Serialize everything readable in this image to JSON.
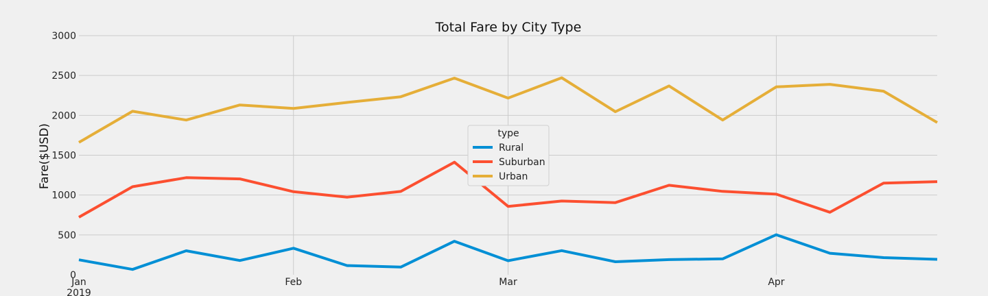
{
  "chart_data": {
    "type": "line",
    "title": "Total Fare by City Type",
    "xlabel": "",
    "ylabel": "Fare($USD)",
    "ylim": [
      0,
      3000
    ],
    "yticks": [
      0,
      500,
      1000,
      1500,
      2000,
      2500,
      3000
    ],
    "x": [
      "2019-01-06",
      "2019-01-13",
      "2019-01-20",
      "2019-01-27",
      "2019-02-03",
      "2019-02-10",
      "2019-02-17",
      "2019-02-24",
      "2019-03-03",
      "2019-03-10",
      "2019-03-17",
      "2019-03-24",
      "2019-03-31",
      "2019-04-07",
      "2019-04-14",
      "2019-04-21",
      "2019-04-28"
    ],
    "xlim": [
      "2019-01-06",
      "2019-04-28"
    ],
    "xticks": [
      {
        "date": "2019-01-06",
        "label": "Jan",
        "sublabel": "2019"
      },
      {
        "date": "2019-02-03",
        "label": "Feb",
        "sublabel": ""
      },
      {
        "date": "2019-03-03",
        "label": "Mar",
        "sublabel": ""
      },
      {
        "date": "2019-04-07",
        "label": "Apr",
        "sublabel": ""
      }
    ],
    "grid": true,
    "legend": {
      "title": "type",
      "placement": "center"
    },
    "series": [
      {
        "name": "Rural",
        "color": "#008fd5",
        "values": [
          187,
          67,
          301,
          179,
          333,
          115,
          96,
          420,
          176,
          303,
          163,
          190,
          199,
          502,
          270,
          215,
          193
        ]
      },
      {
        "name": "Suburban",
        "color": "#fc4f30",
        "values": [
          722,
          1105,
          1218,
          1203,
          1042,
          974,
          1045,
          1412,
          858,
          925,
          905,
          1123,
          1046,
          1011,
          784,
          1150,
          1168
        ]
      },
      {
        "name": "Urban",
        "color": "#e5ae38",
        "values": [
          1661,
          2051,
          1941,
          2130,
          2087,
          2162,
          2233,
          2467,
          2217,
          2471,
          2046,
          2369,
          1941,
          2357,
          2389,
          2303,
          1910
        ]
      }
    ]
  }
}
